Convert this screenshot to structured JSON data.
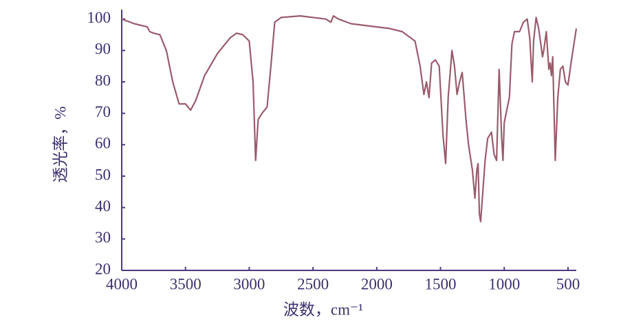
{
  "chart_data": {
    "type": "line",
    "xlabel": "波数，cm⁻¹",
    "ylabel": "透光率，%",
    "x": [
      4000,
      3900,
      3800,
      3780,
      3750,
      3700,
      3650,
      3600,
      3550,
      3500,
      3460,
      3420,
      3350,
      3250,
      3150,
      3100,
      3050,
      3000,
      2970,
      2950,
      2930,
      2900,
      2860,
      2830,
      2800,
      2750,
      2600,
      2400,
      2360,
      2340,
      2300,
      2200,
      2000,
      1900,
      1800,
      1700,
      1660,
      1630,
      1610,
      1590,
      1570,
      1540,
      1510,
      1480,
      1460,
      1440,
      1410,
      1390,
      1370,
      1350,
      1330,
      1300,
      1280,
      1250,
      1230,
      1215,
      1205,
      1195,
      1185,
      1150,
      1130,
      1100,
      1080,
      1060,
      1040,
      1020,
      1010,
      1000,
      980,
      960,
      940,
      920,
      880,
      850,
      820,
      800,
      780,
      770,
      750,
      730,
      700,
      690,
      670,
      650,
      640,
      630,
      620,
      600,
      580,
      560,
      540,
      520,
      500,
      480,
      450,
      435
    ],
    "series": [
      {
        "color": "#9a5b6b",
        "values": [
          100,
          98.5,
          97.5,
          96,
          95.5,
          95,
          90,
          80,
          73,
          73,
          71,
          74,
          82,
          89,
          94,
          95.5,
          95,
          93,
          80,
          55,
          68,
          70,
          72,
          85,
          99,
          100.5,
          101,
          100,
          99,
          101,
          100,
          98.5,
          97.5,
          97,
          96,
          93,
          85,
          76,
          80,
          75,
          86,
          87,
          85,
          63,
          54,
          75,
          90,
          85,
          76,
          80,
          83,
          68,
          60,
          52,
          43,
          52,
          54,
          38,
          35.5,
          55,
          62,
          64,
          57,
          55,
          84,
          62,
          55,
          67,
          71,
          75,
          92,
          96,
          96,
          99,
          100,
          94,
          80,
          93,
          100.5,
          97,
          88,
          90,
          96,
          84,
          86,
          82,
          88,
          55,
          75,
          84,
          85,
          80,
          79,
          85,
          93,
          97
        ]
      }
    ],
    "xlim": [
      4000,
      435
    ],
    "ylim": [
      20,
      103
    ],
    "xticks": [
      4000,
      3500,
      3000,
      2500,
      2000,
      1500,
      1000,
      500
    ],
    "yticks": [
      20,
      30,
      40,
      50,
      60,
      70,
      80,
      90,
      100
    ]
  }
}
